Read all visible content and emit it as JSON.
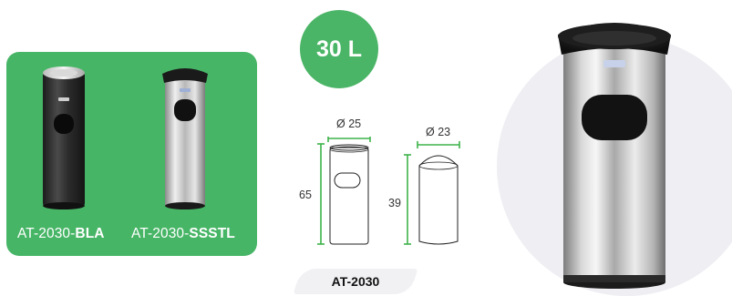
{
  "capacity": "30 L",
  "variants": [
    {
      "prefix": "AT-2030-",
      "suffix": "BLA"
    },
    {
      "prefix": "AT-2030-",
      "suffix": "SSSTL"
    }
  ],
  "dimensions": {
    "outer_diameter": "Ø 25",
    "inner_diameter": "Ø 23",
    "outer_height": "65",
    "inner_height": "39"
  },
  "model": "AT-2030",
  "colors": {
    "brand_green": "#47b566",
    "dimension_line": "#3db34a",
    "black_finish": "#2a2a2a",
    "steel_finish": "#c8c8c8"
  }
}
